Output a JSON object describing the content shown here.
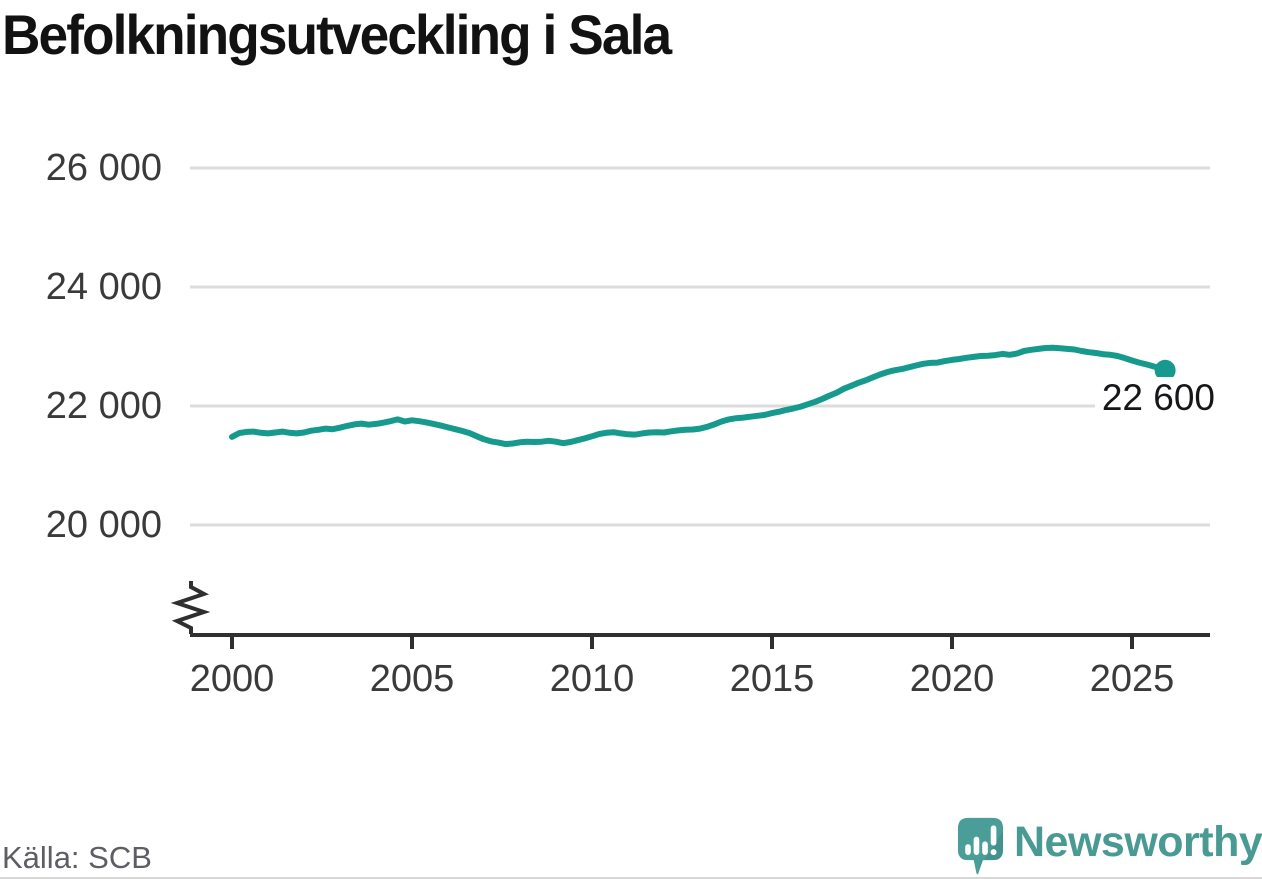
{
  "title": "Befolkningsutveckling i Sala",
  "source": "Källa: SCB",
  "brand": {
    "name": "Newsworthy",
    "logo_icon": "newsworthy-speech-bubble-bar-chart-icon",
    "icon_color": "#4b9d97",
    "text_color": "#4a9a94"
  },
  "colors": {
    "line": "#169a8d",
    "axis": "#2f2f2f",
    "gridline": "#dcdcdc",
    "tick_label": "#3a3a3a",
    "annotation": "#17171a"
  },
  "chart_data": {
    "type": "line",
    "title": "Befolkningsutveckling i Sala",
    "xlabel": "",
    "ylabel": "",
    "grid": "horizontal",
    "legend": "none",
    "y_axis_truncated": true,
    "axis_break_symbol": true,
    "y_range_shown": [
      20000,
      26000
    ],
    "x_range_shown": [
      1998.8,
      2027.2
    ],
    "y_ticks": [
      {
        "value": 26000,
        "label": "26 000"
      },
      {
        "value": 24000,
        "label": "24 000"
      },
      {
        "value": 22000,
        "label": "22 000"
      },
      {
        "value": 20000,
        "label": "20 000"
      }
    ],
    "x_ticks": [
      {
        "value": 2000,
        "label": "2000"
      },
      {
        "value": 2005,
        "label": "2005"
      },
      {
        "value": 2010,
        "label": "2010"
      },
      {
        "value": 2015,
        "label": "2015"
      },
      {
        "value": 2020,
        "label": "2020"
      },
      {
        "value": 2025,
        "label": "2025"
      }
    ],
    "end_point": {
      "year": 2025.92,
      "value": 22600,
      "label": "22 600"
    },
    "series": [
      {
        "name": "Befolkning i Sala",
        "color": "#169a8d",
        "points": [
          [
            2000.0,
            21480
          ],
          [
            2000.2,
            21545
          ],
          [
            2000.4,
            21565
          ],
          [
            2000.6,
            21570
          ],
          [
            2000.8,
            21550
          ],
          [
            2001.0,
            21540
          ],
          [
            2001.2,
            21555
          ],
          [
            2001.4,
            21570
          ],
          [
            2001.6,
            21550
          ],
          [
            2001.8,
            21540
          ],
          [
            2002.0,
            21555
          ],
          [
            2002.2,
            21585
          ],
          [
            2002.4,
            21600
          ],
          [
            2002.6,
            21620
          ],
          [
            2002.8,
            21610
          ],
          [
            2003.0,
            21635
          ],
          [
            2003.2,
            21665
          ],
          [
            2003.4,
            21690
          ],
          [
            2003.6,
            21705
          ],
          [
            2003.8,
            21685
          ],
          [
            2004.0,
            21700
          ],
          [
            2004.2,
            21720
          ],
          [
            2004.4,
            21745
          ],
          [
            2004.6,
            21775
          ],
          [
            2004.8,
            21740
          ],
          [
            2005.0,
            21760
          ],
          [
            2005.2,
            21745
          ],
          [
            2005.4,
            21725
          ],
          [
            2005.6,
            21700
          ],
          [
            2005.8,
            21670
          ],
          [
            2006.0,
            21640
          ],
          [
            2006.2,
            21610
          ],
          [
            2006.4,
            21580
          ],
          [
            2006.6,
            21545
          ],
          [
            2006.8,
            21490
          ],
          [
            2007.0,
            21440
          ],
          [
            2007.2,
            21405
          ],
          [
            2007.4,
            21385
          ],
          [
            2007.6,
            21360
          ],
          [
            2007.8,
            21370
          ],
          [
            2008.0,
            21390
          ],
          [
            2008.2,
            21400
          ],
          [
            2008.4,
            21395
          ],
          [
            2008.6,
            21400
          ],
          [
            2008.8,
            21415
          ],
          [
            2009.0,
            21400
          ],
          [
            2009.2,
            21375
          ],
          [
            2009.4,
            21395
          ],
          [
            2009.6,
            21425
          ],
          [
            2009.8,
            21455
          ],
          [
            2010.0,
            21490
          ],
          [
            2010.2,
            21530
          ],
          [
            2010.4,
            21550
          ],
          [
            2010.6,
            21560
          ],
          [
            2010.8,
            21540
          ],
          [
            2011.0,
            21525
          ],
          [
            2011.2,
            21520
          ],
          [
            2011.4,
            21540
          ],
          [
            2011.6,
            21555
          ],
          [
            2011.8,
            21560
          ],
          [
            2012.0,
            21555
          ],
          [
            2012.2,
            21575
          ],
          [
            2012.4,
            21590
          ],
          [
            2012.6,
            21600
          ],
          [
            2012.8,
            21605
          ],
          [
            2013.0,
            21620
          ],
          [
            2013.2,
            21650
          ],
          [
            2013.4,
            21690
          ],
          [
            2013.6,
            21740
          ],
          [
            2013.8,
            21775
          ],
          [
            2014.0,
            21795
          ],
          [
            2014.2,
            21805
          ],
          [
            2014.4,
            21820
          ],
          [
            2014.6,
            21835
          ],
          [
            2014.8,
            21850
          ],
          [
            2015.0,
            21880
          ],
          [
            2015.2,
            21905
          ],
          [
            2015.4,
            21935
          ],
          [
            2015.6,
            21960
          ],
          [
            2015.8,
            21990
          ],
          [
            2016.0,
            22030
          ],
          [
            2016.2,
            22070
          ],
          [
            2016.4,
            22120
          ],
          [
            2016.6,
            22175
          ],
          [
            2016.8,
            22225
          ],
          [
            2017.0,
            22290
          ],
          [
            2017.2,
            22340
          ],
          [
            2017.4,
            22390
          ],
          [
            2017.6,
            22430
          ],
          [
            2017.8,
            22480
          ],
          [
            2018.0,
            22530
          ],
          [
            2018.2,
            22570
          ],
          [
            2018.4,
            22600
          ],
          [
            2018.6,
            22620
          ],
          [
            2018.8,
            22650
          ],
          [
            2019.0,
            22680
          ],
          [
            2019.2,
            22710
          ],
          [
            2019.4,
            22725
          ],
          [
            2019.6,
            22730
          ],
          [
            2019.8,
            22755
          ],
          [
            2020.0,
            22775
          ],
          [
            2020.2,
            22790
          ],
          [
            2020.4,
            22810
          ],
          [
            2020.6,
            22825
          ],
          [
            2020.8,
            22840
          ],
          [
            2021.0,
            22845
          ],
          [
            2021.2,
            22855
          ],
          [
            2021.4,
            22875
          ],
          [
            2021.6,
            22860
          ],
          [
            2021.8,
            22880
          ],
          [
            2022.0,
            22925
          ],
          [
            2022.2,
            22945
          ],
          [
            2022.4,
            22960
          ],
          [
            2022.6,
            22975
          ],
          [
            2022.8,
            22980
          ],
          [
            2023.0,
            22970
          ],
          [
            2023.2,
            22960
          ],
          [
            2023.4,
            22950
          ],
          [
            2023.6,
            22925
          ],
          [
            2023.8,
            22905
          ],
          [
            2024.0,
            22890
          ],
          [
            2024.2,
            22870
          ],
          [
            2024.4,
            22860
          ],
          [
            2024.6,
            22840
          ],
          [
            2024.8,
            22805
          ],
          [
            2025.0,
            22765
          ],
          [
            2025.2,
            22730
          ],
          [
            2025.4,
            22700
          ],
          [
            2025.6,
            22665
          ],
          [
            2025.8,
            22630
          ],
          [
            2025.92,
            22600
          ]
        ]
      }
    ]
  }
}
